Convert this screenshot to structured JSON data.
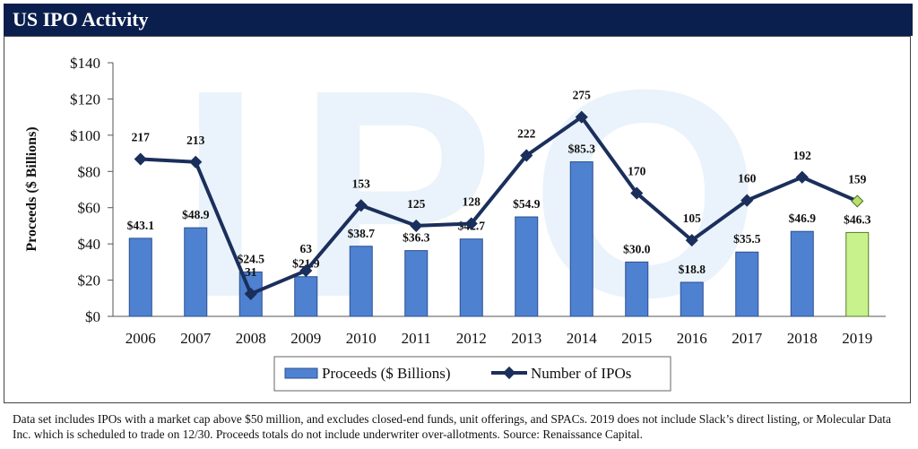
{
  "header": {
    "title": "US IPO Activity"
  },
  "chart_data": {
    "type": "bar",
    "categories": [
      "2006",
      "2007",
      "2008",
      "2009",
      "2010",
      "2011",
      "2012",
      "2013",
      "2014",
      "2015",
      "2016",
      "2017",
      "2018",
      "2019"
    ],
    "series": [
      {
        "name": "Proceeds ($ Billions)",
        "type": "bar",
        "axis": "left",
        "values": [
          43.1,
          48.9,
          24.5,
          21.9,
          38.7,
          36.3,
          42.7,
          54.9,
          85.3,
          30.0,
          18.8,
          35.5,
          46.9,
          46.3
        ],
        "labels": [
          "$43.1",
          "$48.9",
          "$24.5",
          "$21.9",
          "$38.7",
          "$36.3",
          "$42.7",
          "$54.9",
          "$85.3",
          "$30.0",
          "$18.8",
          "$35.5",
          "$46.9",
          "$46.3"
        ],
        "color": "#4f81d1",
        "highlight_color": "#c7f28c"
      },
      {
        "name": "Number of IPOs",
        "type": "line",
        "axis": "secondary-unlabeled",
        "values": [
          217,
          213,
          31,
          63,
          153,
          125,
          128,
          222,
          275,
          170,
          105,
          160,
          192,
          159
        ],
        "color": "#1b2f5c",
        "highlight_color": "#b9e06a"
      }
    ],
    "ylabel": "Proceeds ($ Billions)",
    "ylim": [
      0,
      140
    ],
    "yticks": [
      "$0",
      "$20",
      "$40",
      "$60",
      "$80",
      "$100",
      "$120",
      "$140"
    ],
    "legend_position": "bottom-center"
  },
  "footnote": "Data set includes IPOs with a market cap above $50 million, and excludes closed-end funds, unit offerings, and SPACs. 2019 does not include Slack’s direct listing, or Molecular Data Inc. which is scheduled to trade on 12/30. Proceeds totals do not include underwriter over-allotments. Source: Renaissance Capital."
}
